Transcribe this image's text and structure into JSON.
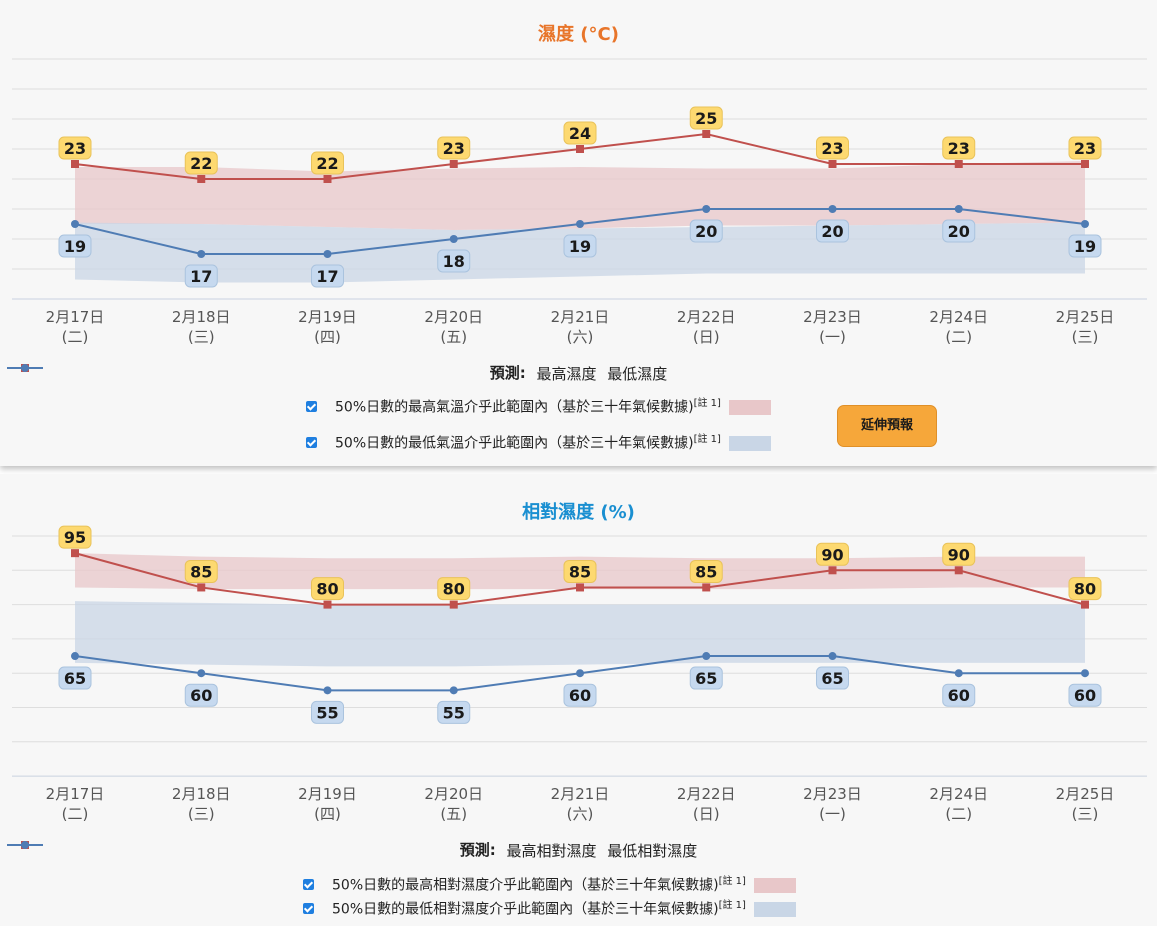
{
  "temperature": {
    "title": "濕度 (°C)",
    "legend": {
      "forecast_label": "預測:",
      "max_label": "最高濕度",
      "min_label": "最低濕度"
    },
    "ranges": [
      {
        "label": "50%日數的最高氣溫介乎此範圍內（基於三十年氣候數據)",
        "note": "[註 1]"
      },
      {
        "label": "50%日數的最低氣溫介乎此範圍內（基於三十年氣候數據)",
        "note": "[註 1]"
      }
    ],
    "extend_button": "延伸預報"
  },
  "humidity": {
    "title": "相對濕度 (%)",
    "legend": {
      "forecast_label": "預測:",
      "max_label": "最高相對濕度",
      "min_label": "最低相對濕度"
    },
    "ranges": [
      {
        "label": "50%日數的最高相對濕度介乎此範圍內（基於三十年氣候數據)",
        "note": "[註 1]"
      },
      {
        "label": "50%日數的最低相對濕度介乎此範圍內（基於三十年氣候數據)",
        "note": "[註 1]"
      }
    ]
  },
  "colors": {
    "max_line": "#c0504d",
    "min_line": "#4f7cb4",
    "max_band": "#e8c7c9",
    "min_band": "#c9d6e6",
    "max_label_bg": "#fdd970",
    "min_label_bg": "#c6d9ef"
  },
  "chart_data": [
    {
      "type": "line",
      "title": "濕度 (°C)",
      "categories": [
        "2月17日",
        "2月18日",
        "2月19日",
        "2月20日",
        "2月21日",
        "2月22日",
        "2月23日",
        "2月24日",
        "2月25日"
      ],
      "weekdays": [
        "(二)",
        "(三)",
        "(四)",
        "(五)",
        "(六)",
        "(日)",
        "(一)",
        "(二)",
        "(三)"
      ],
      "ylim": [
        14,
        30
      ],
      "grid": true,
      "series": [
        {
          "name": "最高濕度",
          "values": [
            23,
            22,
            22,
            23,
            24,
            25,
            23,
            23,
            23
          ]
        },
        {
          "name": "最低濕度",
          "values": [
            19,
            17,
            17,
            18,
            19,
            20,
            20,
            20,
            19
          ]
        }
      ],
      "bands": [
        {
          "upper": [
            22.8,
            22.8,
            22.5,
            22.7,
            22.8,
            22.7,
            22.7,
            23.0,
            23.2
          ],
          "lower": [
            19.0,
            19.0,
            18.8,
            18.6,
            18.7,
            18.9,
            18.9,
            19.0,
            19.1
          ]
        },
        {
          "upper": [
            19.1,
            19.0,
            18.8,
            18.6,
            18.7,
            18.8,
            18.9,
            19.0,
            19.1
          ],
          "lower": [
            15.3,
            15.1,
            15.1,
            15.3,
            15.5,
            15.7,
            15.7,
            15.7,
            15.7
          ]
        }
      ]
    },
    {
      "type": "line",
      "title": "相對濕度 (%)",
      "categories": [
        "2月17日",
        "2月18日",
        "2月19日",
        "2月20日",
        "2月21日",
        "2月22日",
        "2月23日",
        "2月24日",
        "2月25日"
      ],
      "weekdays": [
        "(二)",
        "(三)",
        "(四)",
        "(五)",
        "(六)",
        "(日)",
        "(一)",
        "(二)",
        "(三)"
      ],
      "ylim": [
        30,
        100
      ],
      "grid": true,
      "series": [
        {
          "name": "最高相對濕度",
          "values": [
            95,
            85,
            80,
            80,
            85,
            85,
            90,
            90,
            80
          ]
        },
        {
          "name": "最低相對濕度",
          "values": [
            65,
            60,
            55,
            55,
            60,
            65,
            65,
            60,
            60
          ]
        }
      ],
      "bands": [
        {
          "upper": [
            95,
            94,
            93.5,
            93.5,
            94,
            93.5,
            93.5,
            94,
            94
          ],
          "lower": [
            85,
            84.5,
            84.5,
            84.5,
            84.5,
            84.5,
            84.5,
            85,
            85
          ]
        },
        {
          "upper": [
            81,
            80.5,
            80,
            80,
            80,
            80,
            80,
            80,
            80
          ],
          "lower": [
            63,
            62.5,
            62,
            62,
            62.5,
            63,
            63,
            63,
            63
          ]
        }
      ]
    }
  ]
}
